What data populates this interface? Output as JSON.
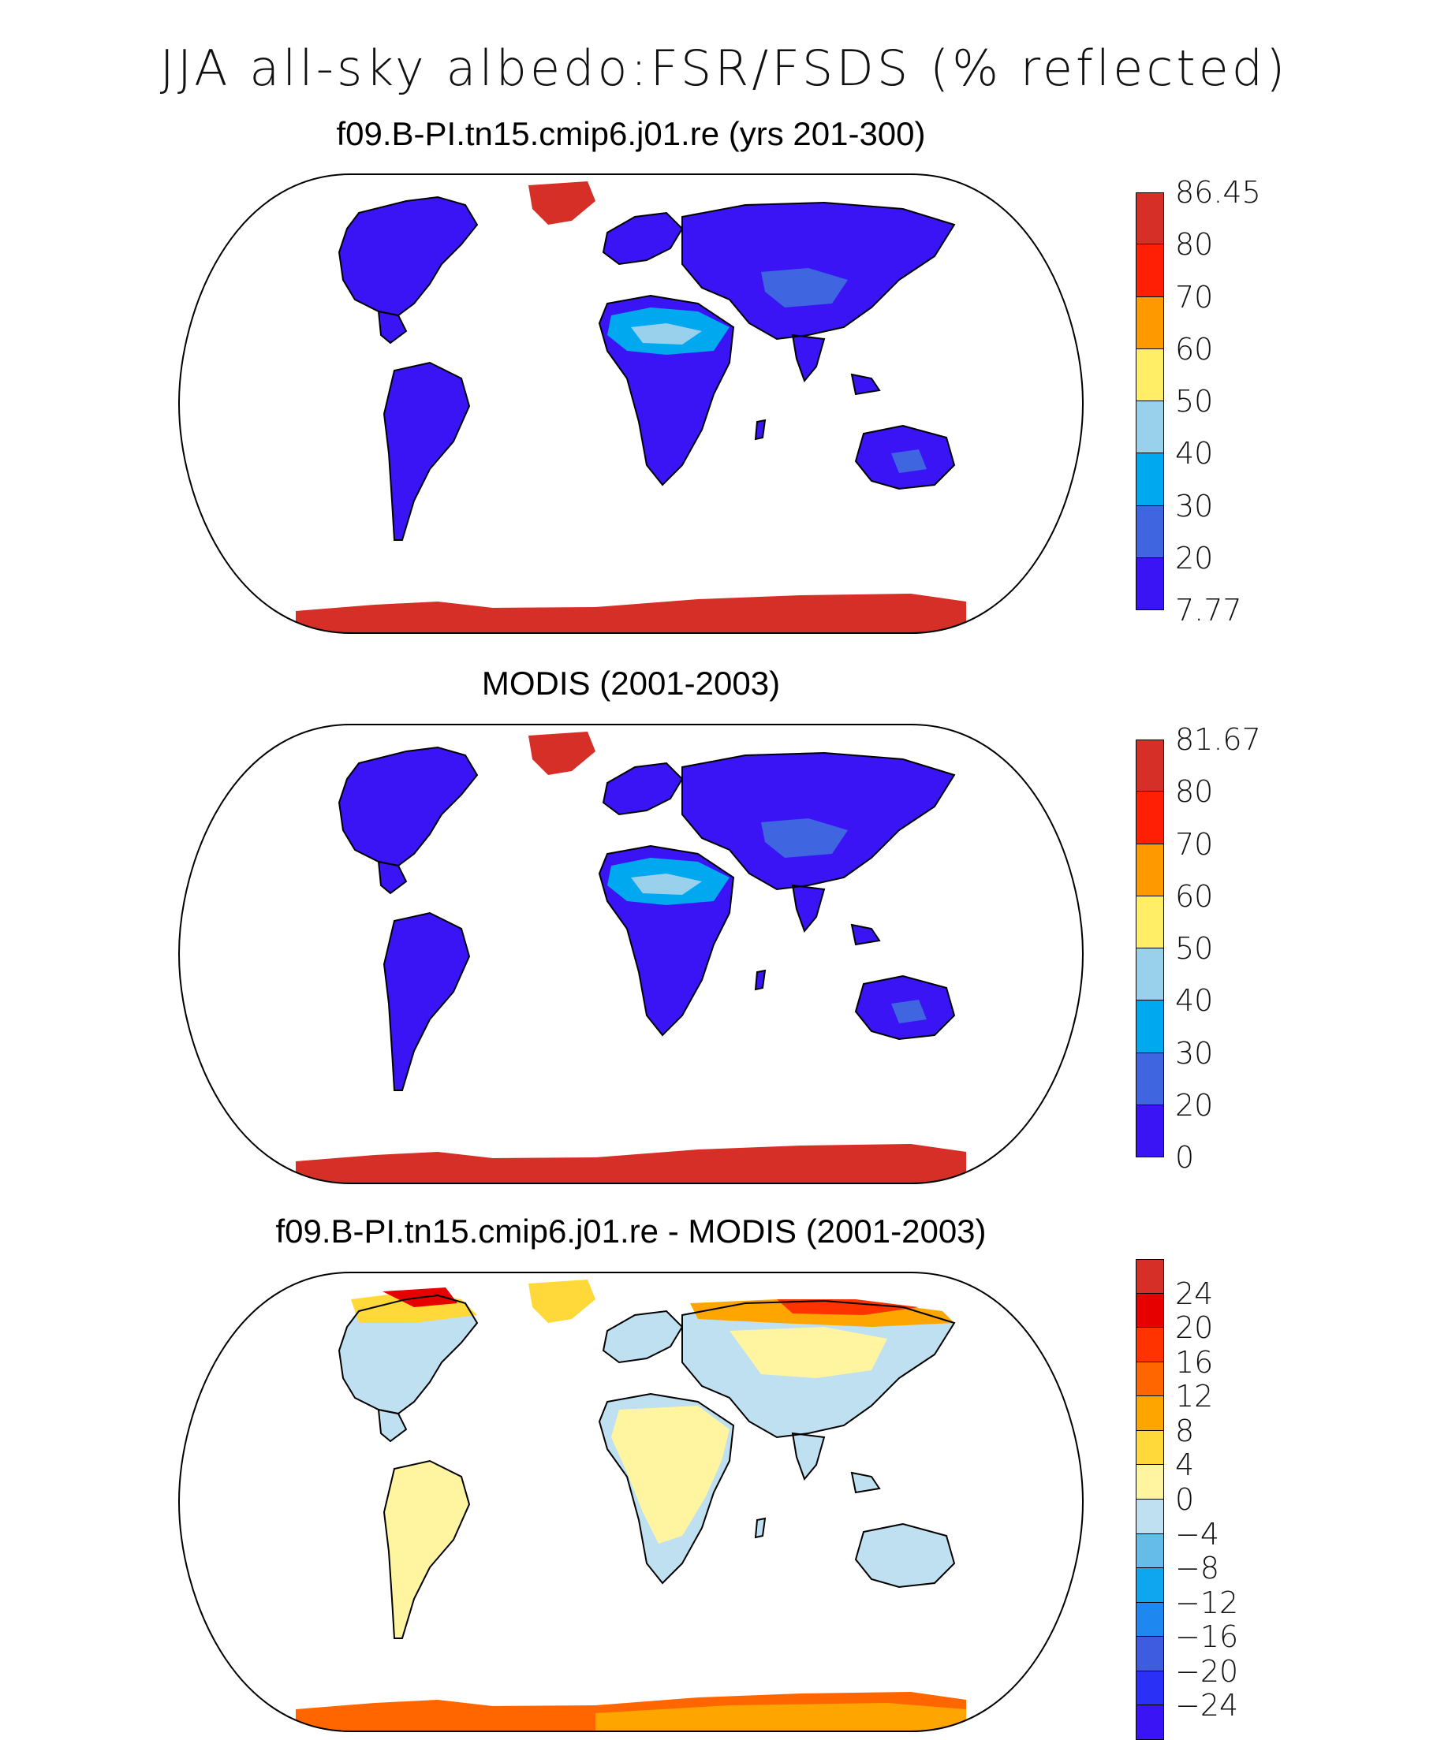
{
  "title": "JJA all-sky albedo:FSR/FSDS (% reflected)",
  "panels": [
    {
      "title": "f09.B-PI.tn15.cmip6.j01.re (yrs 201-300)",
      "colorbar": {
        "labels": [
          "86.45",
          "80",
          "70",
          "60",
          "50",
          "40",
          "30",
          "20",
          "7.77"
        ],
        "colors": [
          "#d62f27",
          "#ff1f05",
          "#ff9900",
          "#ffee66",
          "#99d1ec",
          "#00a8f0",
          "#3f66e0",
          "#3a14f5"
        ]
      },
      "polar_colors": {
        "arctic": "#d62f27",
        "antarctic": "#d62f27"
      }
    },
    {
      "title": "MODIS (2001-2003)",
      "colorbar": {
        "labels": [
          "81.67",
          "80",
          "70",
          "60",
          "50",
          "40",
          "30",
          "20",
          "0"
        ],
        "colors": [
          "#d62f27",
          "#ff1f05",
          "#ff9900",
          "#ffee66",
          "#99d1ec",
          "#00a8f0",
          "#3f66e0",
          "#3a14f5"
        ]
      },
      "polar_colors": {
        "arctic": "#ff1f05",
        "antarctic": "#ff9900"
      }
    },
    {
      "title": "f09.B-PI.tn15.cmip6.j01.re - MODIS (2001-2003)",
      "colorbar": {
        "labels": [
          "24",
          "20",
          "16",
          "12",
          "8",
          "4",
          "0",
          "−4",
          "−8",
          "−12",
          "−16",
          "−20",
          "−24"
        ],
        "colors": [
          "#d62f27",
          "#e60000",
          "#ff3300",
          "#ff6600",
          "#ffa500",
          "#ffd93a",
          "#fff5a0",
          "#bfe0f0",
          "#66bce8",
          "#0fa6f0",
          "#1e87f0",
          "#3d5ce0",
          "#2a30f5",
          "#3a14f5"
        ]
      },
      "polar_colors": {
        "arctic": "#ffd93a",
        "antarctic": "#ff6600"
      }
    }
  ]
}
